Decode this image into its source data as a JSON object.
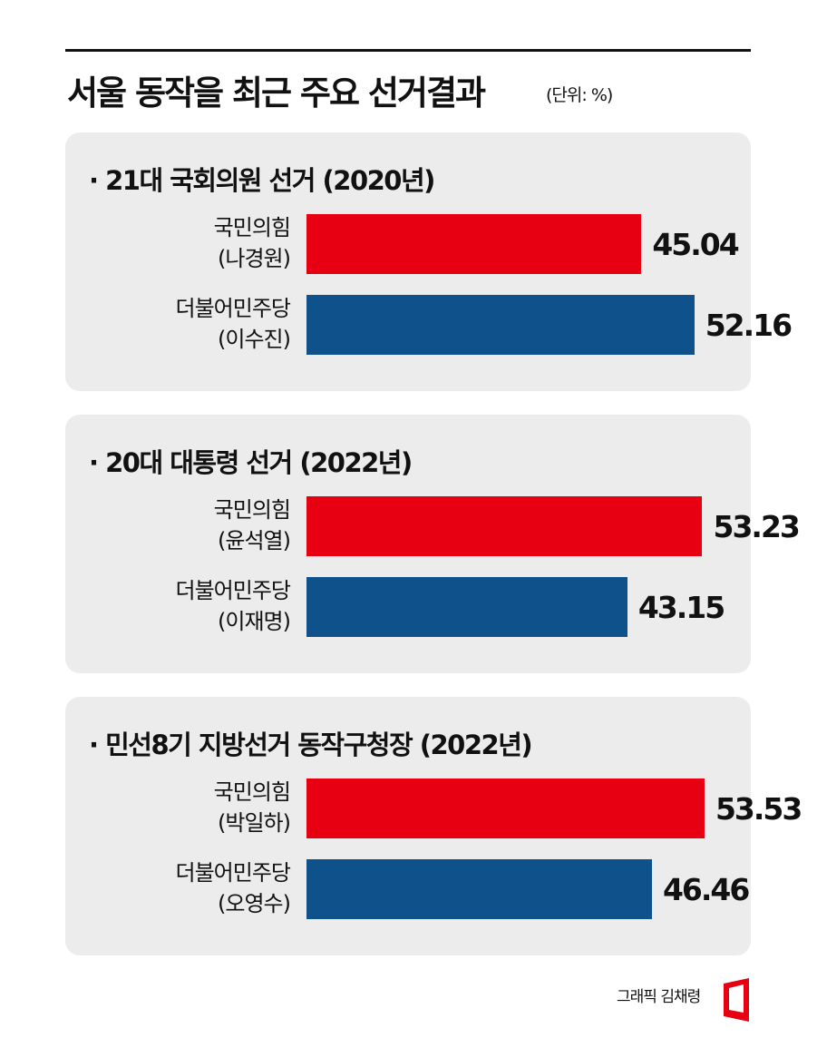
{
  "header": {
    "title": "서울 동작을 최근 주요 선거결과",
    "unit": "(단위: %)"
  },
  "colors": {
    "party_1": "#e60012",
    "party_2": "#0f528b",
    "panel_bg": "#ececec"
  },
  "chart_data": [
    {
      "type": "bar",
      "orientation": "horizontal",
      "title": "· 21대 국회의원 선거 (2020년)",
      "categories": [
        "국민의힘\n(나경원)",
        "더불어민주당\n(이수진)"
      ],
      "rows": [
        {
          "party": "국민의힘",
          "candidate": "(나경원)",
          "value": 45.04,
          "value_label": "45.04",
          "color": "#e60012"
        },
        {
          "party": "더불어민주당",
          "candidate": "(이수진)",
          "value": 52.16,
          "value_label": "52.16",
          "color": "#0f528b"
        }
      ],
      "values": [
        45.04,
        52.16
      ]
    },
    {
      "type": "bar",
      "orientation": "horizontal",
      "title": "· 20대 대통령 선거 (2022년)",
      "categories": [
        "국민의힘\n(윤석열)",
        "더불어민주당\n(이재명)"
      ],
      "rows": [
        {
          "party": "국민의힘",
          "candidate": "(윤석열)",
          "value": 53.23,
          "value_label": "53.23",
          "color": "#e60012"
        },
        {
          "party": "더불어민주당",
          "candidate": "(이재명)",
          "value": 43.15,
          "value_label": "43.15",
          "color": "#0f528b"
        }
      ],
      "values": [
        53.23,
        43.15
      ]
    },
    {
      "type": "bar",
      "orientation": "horizontal",
      "title": "· 민선8기 지방선거 동작구청장 (2022년)",
      "categories": [
        "국민의힘\n(박일하)",
        "더불어민주당\n(오영수)"
      ],
      "rows": [
        {
          "party": "국민의힘",
          "candidate": "(박일하)",
          "value": 53.53,
          "value_label": "53.53",
          "color": "#e60012"
        },
        {
          "party": "더불어민주당",
          "candidate": "(오영수)",
          "value": 46.46,
          "value_label": "46.46",
          "color": "#0f528b"
        }
      ],
      "values": [
        53.53,
        46.46
      ]
    }
  ],
  "footer": {
    "credit": "그래픽 김채령"
  }
}
